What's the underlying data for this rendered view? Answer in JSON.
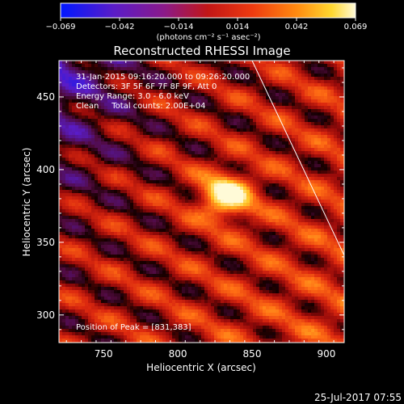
{
  "colorbar": {
    "ticks": [
      "−0.069",
      "−0.042",
      "−0.014",
      "0.014",
      "0.042",
      "0.069"
    ],
    "unit_label": "(photons cm⁻² s⁻¹ asec⁻²)",
    "range": [
      -0.069,
      0.069
    ]
  },
  "chart_data": {
    "type": "heatmap",
    "title": "Reconstructed RHESSI Image",
    "xlabel": "Heliocentric X (arcsec)",
    "ylabel": "Heliocentric Y (arcsec)",
    "xlim": [
      720,
      912
    ],
    "ylim": [
      281,
      475
    ],
    "x_ticks": [
      750,
      800,
      850,
      900
    ],
    "y_ticks": [
      300,
      350,
      400,
      450
    ],
    "annotations": [
      "31-Jan-2015 09:16:20.000 to 09:26:20.000",
      "Detectors: 3F 5F 6F 7F 8F 9F, Att 0",
      "Energy Range: 3.0 - 6.0 keV",
      "Clean     Total counts: 2.00E+04"
    ],
    "peak_label": "Position of Peak = [831,383]",
    "peak": [
      831,
      383
    ],
    "limb_line": [
      [
        850,
        475
      ],
      [
        912,
        341
      ]
    ],
    "colormap": "hot"
  },
  "footer": {
    "timestamp": "25-Jul-2017 07:55"
  }
}
